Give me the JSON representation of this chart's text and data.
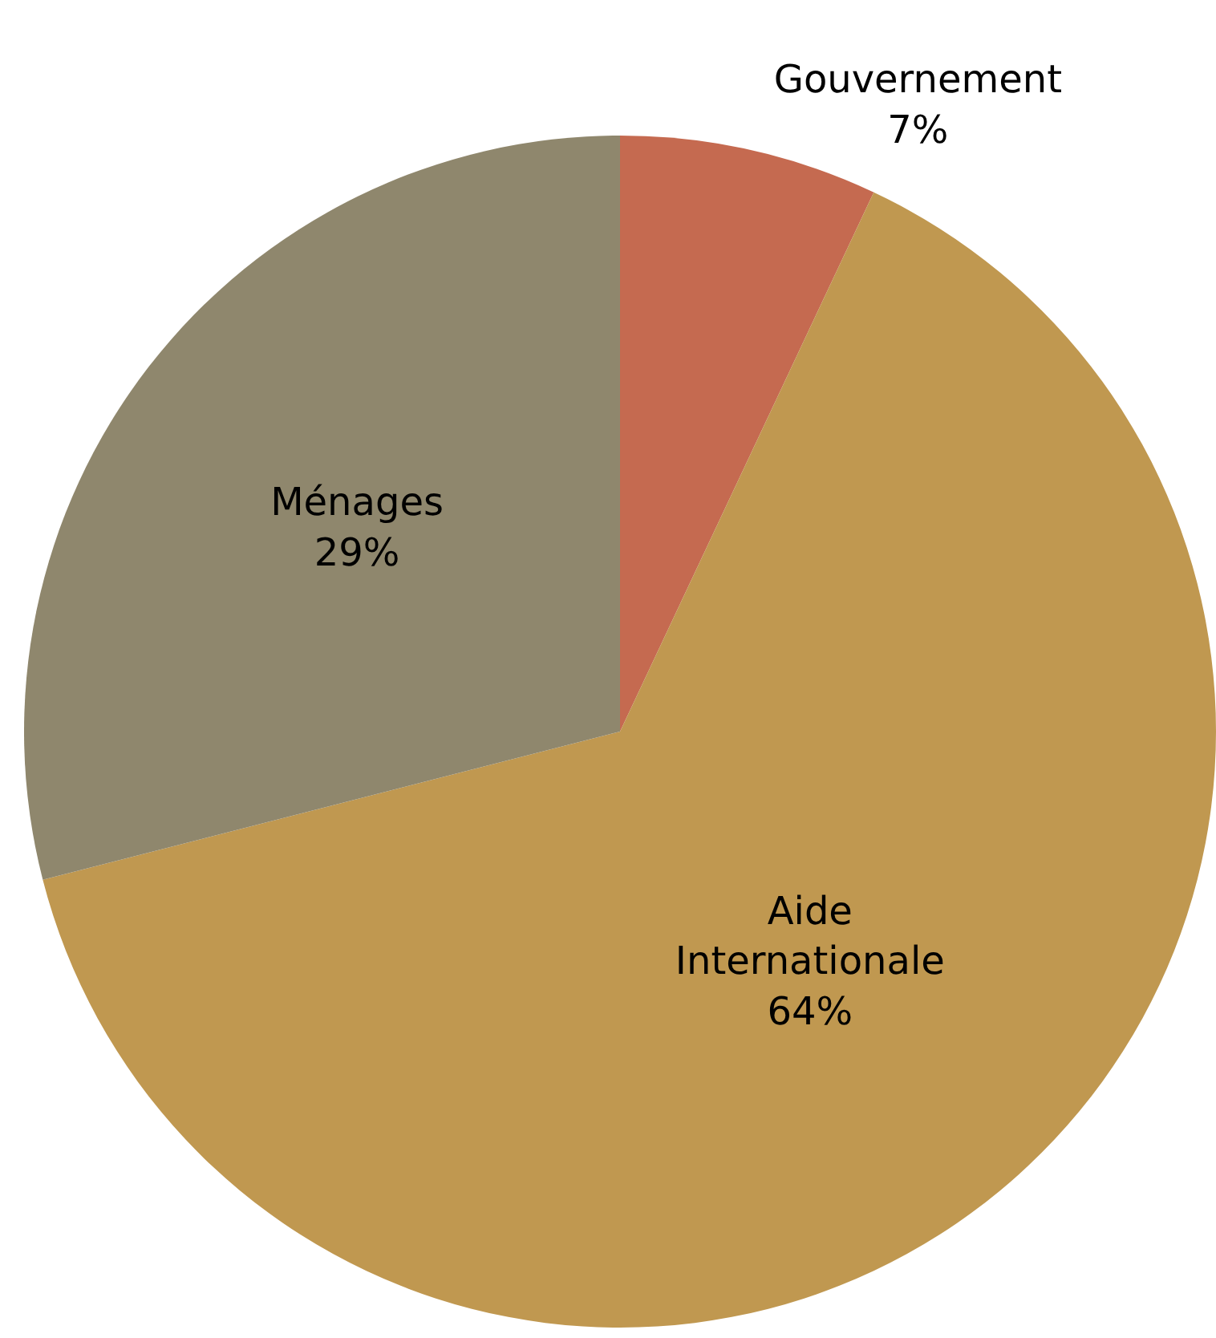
{
  "chart_data": {
    "type": "pie",
    "categories": [
      "Gouvernement",
      "Aide Internationale",
      "Ménages"
    ],
    "values": [
      7,
      64,
      29
    ],
    "colors": [
      "#c56a50",
      "#c09850",
      "#8f876d"
    ],
    "value_labels": [
      "7%",
      "64%",
      "29%"
    ],
    "legend": false
  }
}
